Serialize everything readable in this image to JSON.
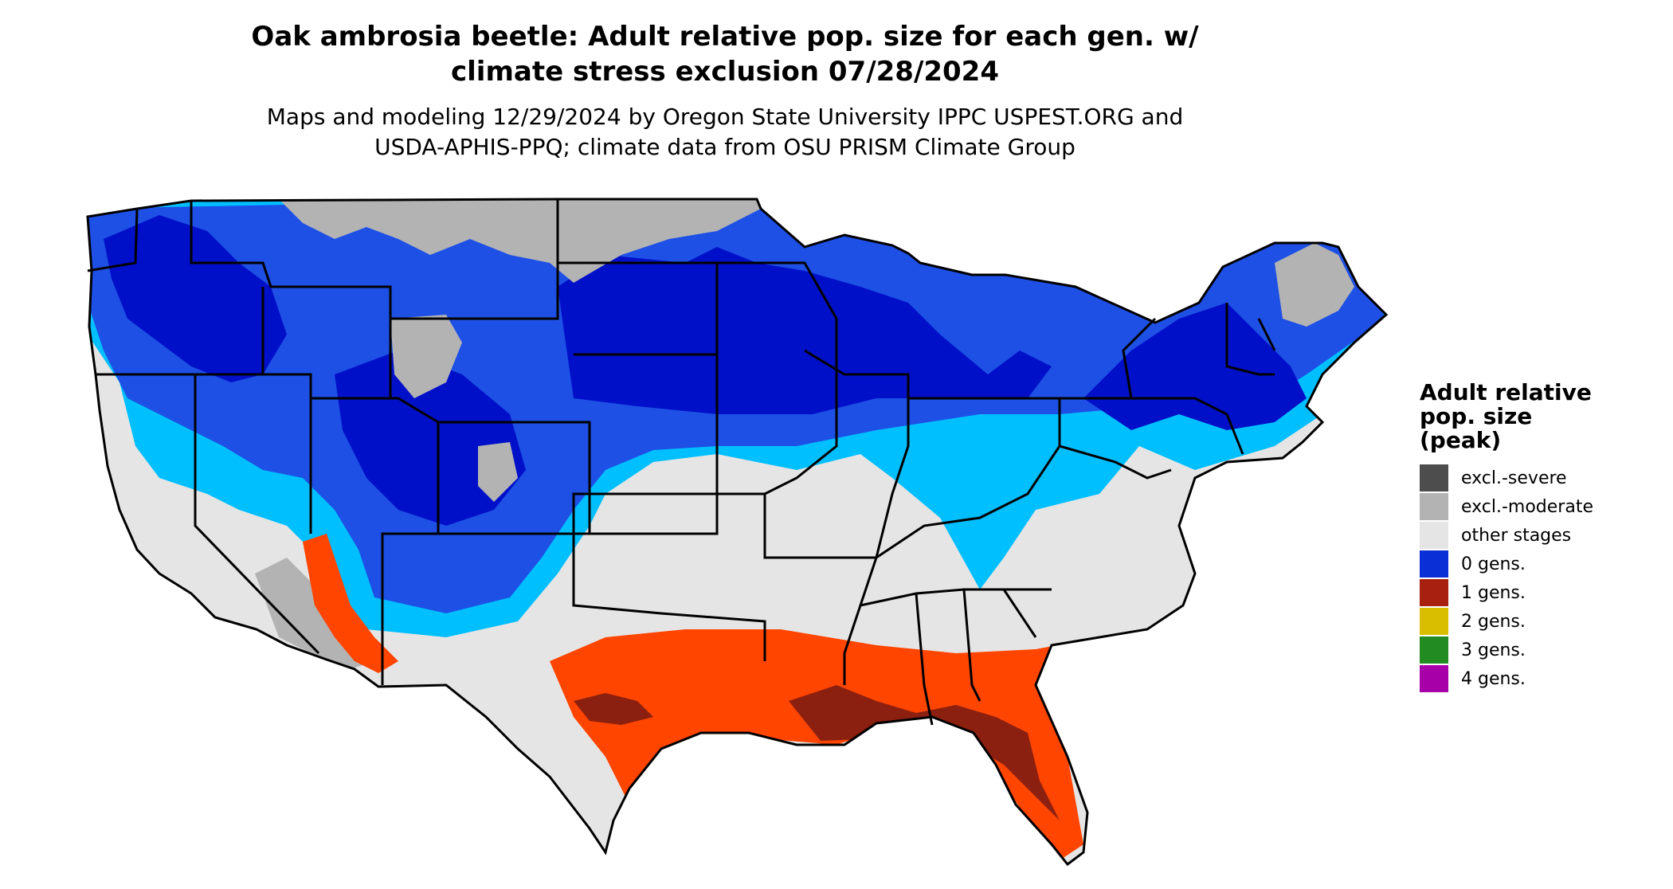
{
  "title_line1": "Oak ambrosia beetle: Adult relative pop. size for each gen. w/",
  "title_line2": "climate stress exclusion 07/28/2024",
  "subtitle_line1": "Maps and modeling 12/29/2024 by Oregon State University IPPC USPEST.ORG and",
  "subtitle_line2": "USDA-APHIS-PPQ; climate data from OSU PRISM Climate Group",
  "legend": {
    "title_line1": "Adult relative",
    "title_line2": "pop. size",
    "title_line3": "(peak)",
    "items": [
      {
        "label": "excl.-severe",
        "color": "#4d4d4d"
      },
      {
        "label": "excl.-moderate",
        "color": "#b3b3b3"
      },
      {
        "label": "other stages",
        "color": "#e5e5e5"
      },
      {
        "label": "0 gens.",
        "color": "#0a2fd6"
      },
      {
        "label": "1 gens.",
        "color": "#a8200f"
      },
      {
        "label": "2 gens.",
        "color": "#d9be00"
      },
      {
        "label": "3 gens.",
        "color": "#228b22"
      },
      {
        "label": "4 gens.",
        "color": "#a800a8"
      }
    ]
  },
  "map_colors": {
    "dark_blue": "#0010c8",
    "mid_blue": "#1e50e6",
    "light_blue": "#00bfff",
    "grey_light": "#e5e5e5",
    "grey_mid": "#b3b3b3",
    "grey_dark": "#4d4d4d",
    "orange_red": "#ff4500",
    "dark_red": "#8b2010"
  }
}
